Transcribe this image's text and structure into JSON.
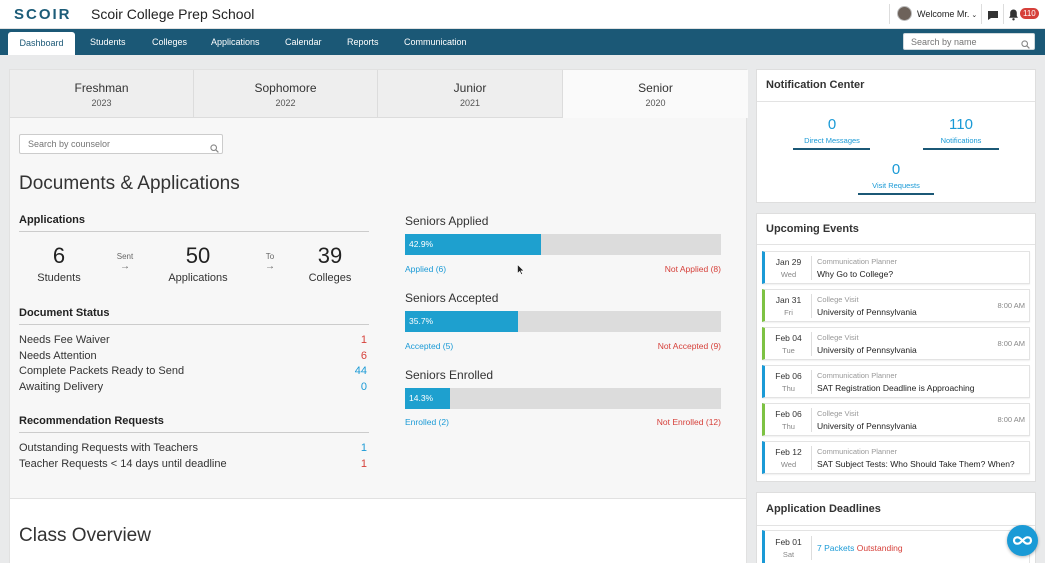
{
  "header": {
    "logo": "SCOIR",
    "school_name": "Scoir College Prep School",
    "welcome": "Welcome Mr.",
    "notification_count": "110"
  },
  "nav": {
    "items": [
      "Dashboard",
      "Students",
      "Colleges",
      "Applications",
      "Calendar",
      "Reports",
      "Communication"
    ],
    "active": "Dashboard",
    "search_placeholder": "Search by name"
  },
  "class_tabs": [
    {
      "name": "Freshman",
      "year": "2023"
    },
    {
      "name": "Sophomore",
      "year": "2022"
    },
    {
      "name": "Junior",
      "year": "2021"
    },
    {
      "name": "Senior",
      "year": "2020"
    }
  ],
  "counselor_search_placeholder": "Search by counselor",
  "documents": {
    "title": "Documents & Applications",
    "applications_heading": "Applications",
    "students_count": "6",
    "students_label": "Students",
    "sent_label": "Sent",
    "applications_count": "50",
    "applications_label": "Applications",
    "to_label": "To",
    "colleges_count": "39",
    "colleges_label": "Colleges",
    "status_heading": "Document Status",
    "status_rows": [
      {
        "label": "Needs Fee Waiver",
        "value": "1",
        "color": "#d6403a"
      },
      {
        "label": "Needs Attention",
        "value": "6",
        "color": "#d6403a"
      },
      {
        "label": "Complete Packets Ready to Send",
        "value": "44",
        "color": "#1a9ad6"
      },
      {
        "label": "Awaiting Delivery",
        "value": "0",
        "color": "#1a9ad6"
      }
    ],
    "rec_heading": "Recommendation Requests",
    "rec_rows": [
      {
        "label": "Outstanding Requests with Teachers",
        "value": "1",
        "color": "#1a9ad6"
      },
      {
        "label": "Teacher Requests < 14 days until deadline",
        "value": "1",
        "color": "#d6403a"
      }
    ]
  },
  "progress": [
    {
      "title": "Seniors Applied",
      "percent_label": "42.9%",
      "fraction": 0.429,
      "left": "Applied (6)",
      "right": "Not Applied (8)"
    },
    {
      "title": "Seniors Accepted",
      "percent_label": "35.7%",
      "fraction": 0.357,
      "left": "Accepted (5)",
      "right": "Not Accepted (9)"
    },
    {
      "title": "Seniors Enrolled",
      "percent_label": "14.3%",
      "fraction": 0.143,
      "left": "Enrolled (2)",
      "right": "Not Enrolled (12)"
    }
  ],
  "class_overview_title": "Class Overview",
  "notification_center": {
    "title": "Notification Center",
    "direct_messages_count": "0",
    "direct_messages_label": "Direct Messages",
    "notifications_count": "110",
    "notifications_label": "Notifications",
    "visit_requests_count": "0",
    "visit_requests_label": "Visit Requests"
  },
  "upcoming_events": {
    "title": "Upcoming Events",
    "events": [
      {
        "date": "Jan 29",
        "day": "Wed",
        "type": "Communication Planner",
        "title": "Why Go to College?",
        "time": "",
        "color": "#1a9ad6"
      },
      {
        "date": "Jan 31",
        "day": "Fri",
        "type": "College Visit",
        "title": "University of Pennsylvania",
        "time": "8:00 AM",
        "color": "#7dc243"
      },
      {
        "date": "Feb 04",
        "day": "Tue",
        "type": "College Visit",
        "title": "University of Pennsylvania",
        "time": "8:00 AM",
        "color": "#7dc243"
      },
      {
        "date": "Feb 06",
        "day": "Thu",
        "type": "Communication Planner",
        "title": "SAT Registration Deadline is Approaching",
        "time": "",
        "color": "#1a9ad6"
      },
      {
        "date": "Feb 06",
        "day": "Thu",
        "type": "College Visit",
        "title": "University of Pennsylvania",
        "time": "8:00 AM",
        "color": "#7dc243"
      },
      {
        "date": "Feb 12",
        "day": "Wed",
        "type": "Communication Planner",
        "title": "SAT Subject Tests: Who Should Take Them? When?",
        "time": "",
        "color": "#1a9ad6"
      }
    ]
  },
  "application_deadlines": {
    "title": "Application Deadlines",
    "date": "Feb 01",
    "day": "Sat",
    "packets": "7 Packets",
    "status": "Outstanding"
  }
}
